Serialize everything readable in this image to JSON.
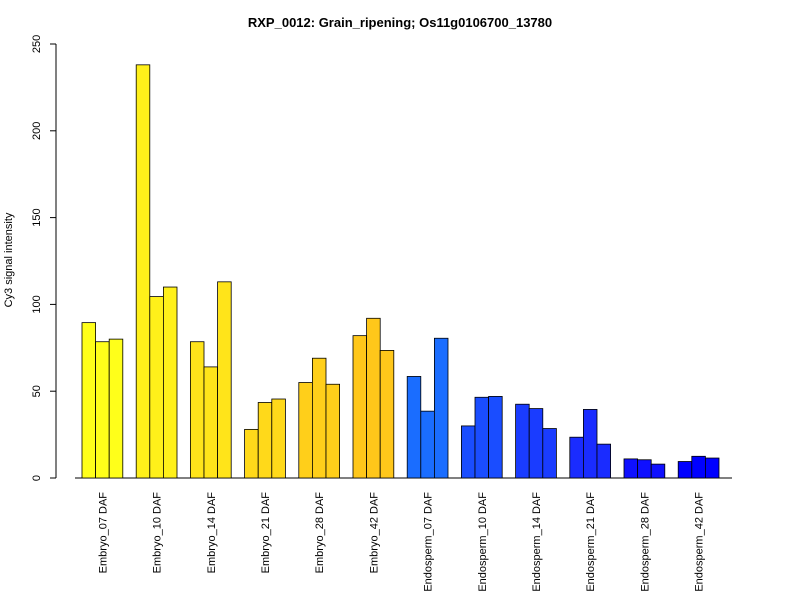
{
  "chart_data": {
    "type": "bar",
    "title": "RXP_0012: Grain_ripening; Os11g0106700_13780",
    "xlabel": "",
    "ylabel": "Cy3 signal intensity",
    "ylim": [
      0,
      250
    ],
    "yticks": [
      0,
      50,
      100,
      150,
      200,
      250
    ],
    "grid": false,
    "legend": "none",
    "categories": [
      "Embryo_07 DAF",
      "Embryo_10 DAF",
      "Embryo_14 DAF",
      "Embryo_21 DAF",
      "Embryo_28 DAF",
      "Embryo_42 DAF",
      "Endosperm_07 DAF",
      "Endosperm_10 DAF",
      "Endosperm_14 DAF",
      "Endosperm_21 DAF",
      "Endosperm_28 DAF",
      "Endosperm_42 DAF"
    ],
    "replicates": [
      [
        89.5,
        78.5,
        80.0
      ],
      [
        238.0,
        104.5,
        110.0
      ],
      [
        78.5,
        64.0,
        113.0
      ],
      [
        28.0,
        43.5,
        45.5
      ],
      [
        55.0,
        69.0,
        54.0
      ],
      [
        82.0,
        92.0,
        73.5
      ],
      [
        58.5,
        38.5,
        80.5
      ],
      [
        30.0,
        46.5,
        47.0
      ],
      [
        42.5,
        40.0,
        28.5
      ],
      [
        23.5,
        39.5,
        19.5
      ],
      [
        11.0,
        10.5,
        8.0
      ],
      [
        9.5,
        12.5,
        11.5
      ]
    ],
    "colors": [
      "#ffff1a",
      "#fff01a",
      "#ffe41a",
      "#ffd91a",
      "#ffcf1a",
      "#ffc71a",
      "#1a6dff",
      "#1a4dff",
      "#1a3cff",
      "#1a2cff",
      "#0f10ff",
      "#0000ff"
    ]
  }
}
